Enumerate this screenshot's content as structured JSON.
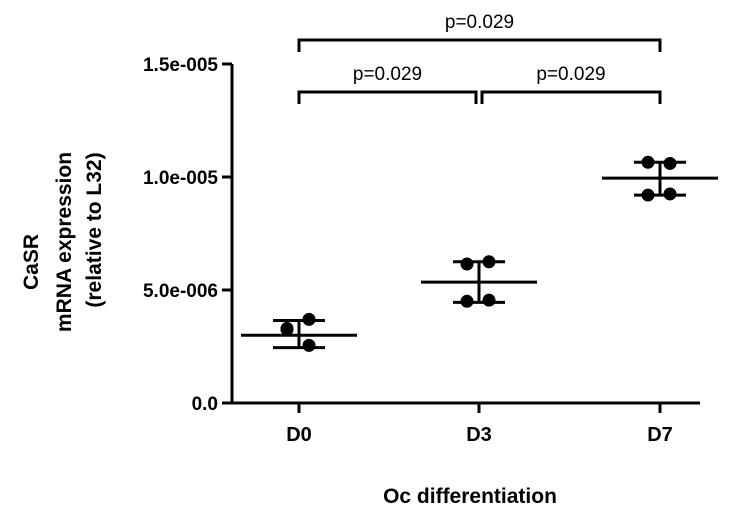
{
  "chart_data": {
    "type": "scatter",
    "subtype": "dot-plot-with-mean-and-sd",
    "categories": [
      "D0",
      "D3",
      "D7"
    ],
    "points": [
      [
        3.7e-06,
        3.25e-06,
        3.3e-06,
        2.55e-06
      ],
      [
        6.25e-06,
        6.15e-06,
        4.5e-06,
        4.55e-06
      ],
      [
        1.06e-05,
        1.065e-05,
        9.2e-06,
        9.25e-06
      ]
    ],
    "mean": [
      3e-06,
      5.35e-06,
      9.95e-06
    ],
    "sd_upper": [
      3.65e-06,
      6.25e-06,
      1.065e-05
    ],
    "sd_lower": [
      2.45e-06,
      4.45e-06,
      9.2e-06
    ],
    "ylim": [
      0,
      1.5e-05
    ],
    "yticks": [
      0,
      5e-06,
      1e-05,
      1.5e-05
    ],
    "ytick_labels": [
      "0.0",
      "5.0e-006",
      "1.0e-005",
      "1.5e-005"
    ],
    "ylabel_lines": [
      "CaSR",
      "mRNA expression",
      "(relative to L32)"
    ],
    "xlabel": "Oc  differentiation",
    "comparisons": [
      {
        "from": "D0",
        "to": "D3",
        "label": "p=0.029"
      },
      {
        "from": "D3",
        "to": "D7",
        "label": "p=0.029"
      },
      {
        "from": "D0",
        "to": "D7",
        "label": "p=0.029"
      }
    ],
    "grid": false,
    "legend": "none"
  }
}
